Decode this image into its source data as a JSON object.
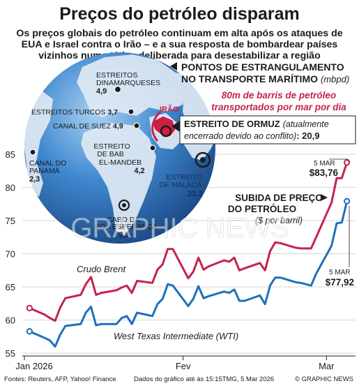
{
  "title": "Preços do petróleo disparam",
  "subtitle": "Os preços globais do petróleo continuam em alta após os ataques de EUA e Israel contra o Irão – e a sua resposta de bombardear países vizinhos numa tática deliberada para desestabilizar a região",
  "footer": {
    "sources": "Fontes: Reuters, AFP, Yahoo! Finance",
    "note": "Dados do gráfico até às 15:15TMG, 5 Mar 2026",
    "credit": "© GRAPHIC NEWS"
  },
  "watermark": "GRAPHIC NEWS",
  "map": {
    "heading_line1": "PONTOS DE ESTRANGULAMENTO",
    "heading_line2": "NO TRANSPORTE MARÍTIMO",
    "heading_unit": "(mbpd)",
    "note_line1": "80m de barris de petróleo",
    "note_line2": "transportados por mar por dia",
    "country_label": "IRÃO",
    "hormuz": {
      "name": "ESTREITO DE ORMUZ",
      "status_line1": "(atualmente",
      "status_line2": "encerrado devido ao conflito)",
      "value": "20,9"
    },
    "chokepoints": [
      {
        "key": "danish",
        "name_lines": [
          "ESTREITOS",
          "DINAMARQUESES"
        ],
        "value": "4,9"
      },
      {
        "key": "turkish",
        "name_lines": [
          "ESTREITOS TURCOS"
        ],
        "value": "3,7"
      },
      {
        "key": "suez",
        "name_lines": [
          "CANAL DE SUEZ"
        ],
        "value": "4,9"
      },
      {
        "key": "bab",
        "name_lines": [
          "ESTREITO",
          "DE BAB",
          "EL-MANDEB"
        ],
        "value": "4,2"
      },
      {
        "key": "panama",
        "name_lines": [
          "CANAL DO",
          "PANAMÁ"
        ],
        "value": "2,3"
      },
      {
        "key": "malacca",
        "name_lines": [
          "ESTREITO",
          "DE MALACA"
        ],
        "value": "23,2"
      },
      {
        "key": "cape",
        "name_lines": [
          "CABO DA",
          "BOA ESPERANÇA"
        ],
        "value": "9,1"
      }
    ],
    "colors": {
      "ocean": "#2f74bf",
      "land": "#dfe9f4",
      "iran": "#cc1f44",
      "dark": "#1c1c1c"
    }
  },
  "price_heading": {
    "line1": "SUBIDA DE PREÇO",
    "line2": "DO PETRÓLEO",
    "unit": "($ por barril)"
  },
  "chart_data": {
    "type": "line",
    "ylim": [
      55,
      87
    ],
    "yticks": [
      55,
      60,
      65,
      70,
      75,
      80,
      85
    ],
    "xlim": [
      "2026-01-01",
      "2026-03-06"
    ],
    "xticks": [
      {
        "date": "2026-01-01",
        "label": "Jan 2026"
      },
      {
        "date": "2026-02-01",
        "label": "Fev"
      },
      {
        "date": "2026-03-01",
        "label": "Mar"
      }
    ],
    "grid": "horizontal",
    "series": [
      {
        "name": "Crudo Brent",
        "color": "#c4234a",
        "end_label_date": "5 MAR",
        "end_label_value": "$83,76",
        "points": [
          [
            "2026-01-02",
            61.8
          ],
          [
            "2026-01-05",
            60.8
          ],
          [
            "2026-01-06",
            60.3
          ],
          [
            "2026-01-07",
            59.9
          ],
          [
            "2026-01-08",
            61.9
          ],
          [
            "2026-01-09",
            63.3
          ],
          [
            "2026-01-12",
            63.8
          ],
          [
            "2026-01-13",
            65.4
          ],
          [
            "2026-01-14",
            66.5
          ],
          [
            "2026-01-15",
            63.8
          ],
          [
            "2026-01-16",
            64.1
          ],
          [
            "2026-01-19",
            64.5
          ],
          [
            "2026-01-20",
            64.9
          ],
          [
            "2026-01-21",
            65.2
          ],
          [
            "2026-01-22",
            64.1
          ],
          [
            "2026-01-23",
            65.9
          ],
          [
            "2026-01-26",
            65.6
          ],
          [
            "2026-01-27",
            67.6
          ],
          [
            "2026-01-28",
            68.4
          ],
          [
            "2026-01-29",
            70.7
          ],
          [
            "2026-01-30",
            70.7
          ],
          [
            "2026-02-02",
            66.3
          ],
          [
            "2026-02-03",
            67.3
          ],
          [
            "2026-02-04",
            69.4
          ],
          [
            "2026-02-05",
            67.6
          ],
          [
            "2026-02-06",
            68.1
          ],
          [
            "2026-02-09",
            69.0
          ],
          [
            "2026-02-10",
            68.8
          ],
          [
            "2026-02-11",
            69.4
          ],
          [
            "2026-02-12",
            67.5
          ],
          [
            "2026-02-13",
            67.8
          ],
          [
            "2026-02-16",
            68.6
          ],
          [
            "2026-02-17",
            67.5
          ],
          [
            "2026-02-18",
            70.4
          ],
          [
            "2026-02-19",
            71.7
          ],
          [
            "2026-02-20",
            71.6
          ],
          [
            "2026-02-23",
            70.9
          ],
          [
            "2026-02-24",
            70.8
          ],
          [
            "2026-02-25",
            70.8
          ],
          [
            "2026-02-26",
            70.8
          ],
          [
            "2026-02-27",
            72.5
          ],
          [
            "2026-03-02",
            77.7
          ],
          [
            "2026-03-03",
            81.4
          ],
          [
            "2026-03-04",
            81.4
          ],
          [
            "2026-03-05",
            83.76
          ]
        ]
      },
      {
        "name": "West Texas Intermediate (WTI)",
        "color": "#1f6fba",
        "end_label_date": "5 MAR",
        "end_label_value": "$77,92",
        "points": [
          [
            "2026-01-02",
            58.3
          ],
          [
            "2026-01-05",
            57.3
          ],
          [
            "2026-01-06",
            56.9
          ],
          [
            "2026-01-07",
            56.0
          ],
          [
            "2026-01-08",
            57.8
          ],
          [
            "2026-01-09",
            59.1
          ],
          [
            "2026-01-12",
            59.4
          ],
          [
            "2026-01-13",
            61.1
          ],
          [
            "2026-01-14",
            62.0
          ],
          [
            "2026-01-15",
            59.2
          ],
          [
            "2026-01-16",
            59.4
          ],
          [
            "2026-01-19",
            59.4
          ],
          [
            "2026-01-20",
            60.3
          ],
          [
            "2026-01-21",
            60.6
          ],
          [
            "2026-01-22",
            59.4
          ],
          [
            "2026-01-23",
            61.1
          ],
          [
            "2026-01-26",
            60.6
          ],
          [
            "2026-01-27",
            62.4
          ],
          [
            "2026-01-28",
            63.2
          ],
          [
            "2026-01-29",
            65.4
          ],
          [
            "2026-01-30",
            65.2
          ],
          [
            "2026-02-02",
            62.1
          ],
          [
            "2026-02-03",
            63.2
          ],
          [
            "2026-02-04",
            65.1
          ],
          [
            "2026-02-05",
            63.3
          ],
          [
            "2026-02-06",
            63.6
          ],
          [
            "2026-02-09",
            64.3
          ],
          [
            "2026-02-10",
            64.1
          ],
          [
            "2026-02-11",
            64.6
          ],
          [
            "2026-02-12",
            62.9
          ],
          [
            "2026-02-13",
            62.9
          ],
          [
            "2026-02-16",
            63.7
          ],
          [
            "2026-02-17",
            62.4
          ],
          [
            "2026-02-18",
            65.2
          ],
          [
            "2026-02-19",
            66.4
          ],
          [
            "2026-02-20",
            66.4
          ],
          [
            "2026-02-23",
            65.7
          ],
          [
            "2026-02-24",
            65.6
          ],
          [
            "2026-02-25",
            65.4
          ],
          [
            "2026-02-26",
            65.2
          ],
          [
            "2026-02-27",
            67.0
          ],
          [
            "2026-03-02",
            71.2
          ],
          [
            "2026-03-03",
            74.6
          ],
          [
            "2026-03-04",
            74.7
          ],
          [
            "2026-03-05",
            77.92
          ]
        ]
      }
    ]
  }
}
